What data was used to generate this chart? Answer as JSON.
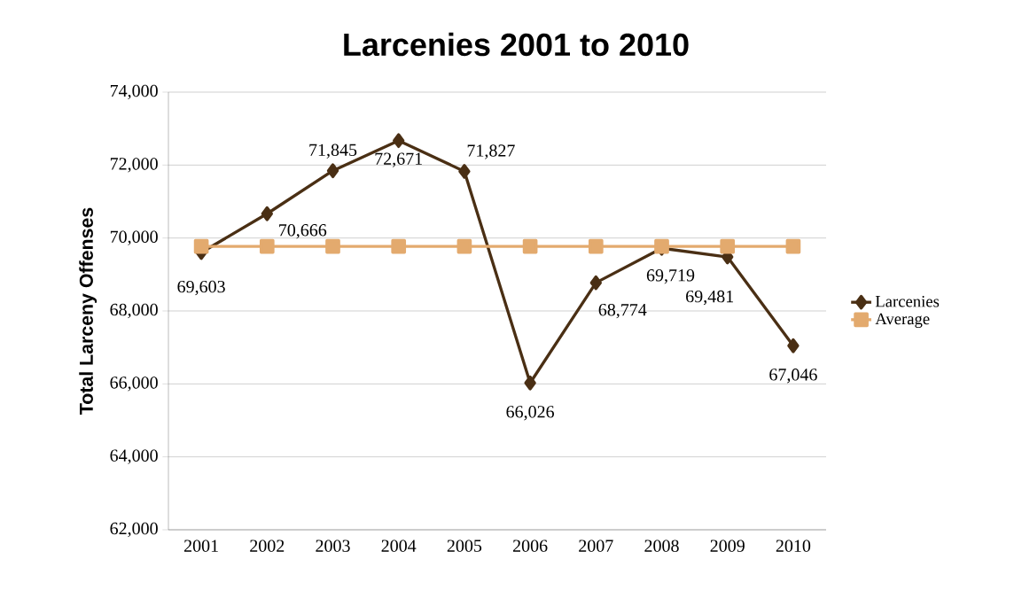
{
  "chart_data": {
    "type": "line",
    "title": "Larcenies 2001 to 2010",
    "ylabel": "Total Larceny Offenses",
    "categories": [
      "2001",
      "2002",
      "2003",
      "2004",
      "2005",
      "2006",
      "2007",
      "2008",
      "2009",
      "2010"
    ],
    "series": [
      {
        "name": "Larcenies",
        "color": "#4a2f14",
        "marker": "diamond",
        "values": [
          69603,
          70666,
          71845,
          72671,
          71827,
          66026,
          68774,
          69719,
          69481,
          67046
        ],
        "value_labels": [
          "69,603",
          "70,666",
          "71,845",
          "72,671",
          "71,827",
          "66,026",
          "68,774",
          "69,719",
          "69,481",
          "67,046"
        ]
      },
      {
        "name": "Average",
        "color": "#e3aa6e",
        "marker": "square",
        "values": [
          69770,
          69770,
          69770,
          69770,
          69770,
          69770,
          69770,
          69770,
          69770,
          69770
        ]
      }
    ],
    "ylim": [
      62000,
      74000
    ],
    "yticks": [
      {
        "value": 62000,
        "label": "62,000"
      },
      {
        "value": 64000,
        "label": "64,000"
      },
      {
        "value": 66000,
        "label": "66,000"
      },
      {
        "value": 68000,
        "label": "68,000"
      },
      {
        "value": 70000,
        "label": "70,000"
      },
      {
        "value": 72000,
        "label": "72,000"
      },
      {
        "value": 74000,
        "label": "74,000"
      }
    ],
    "grid": "y",
    "legend": "right"
  }
}
